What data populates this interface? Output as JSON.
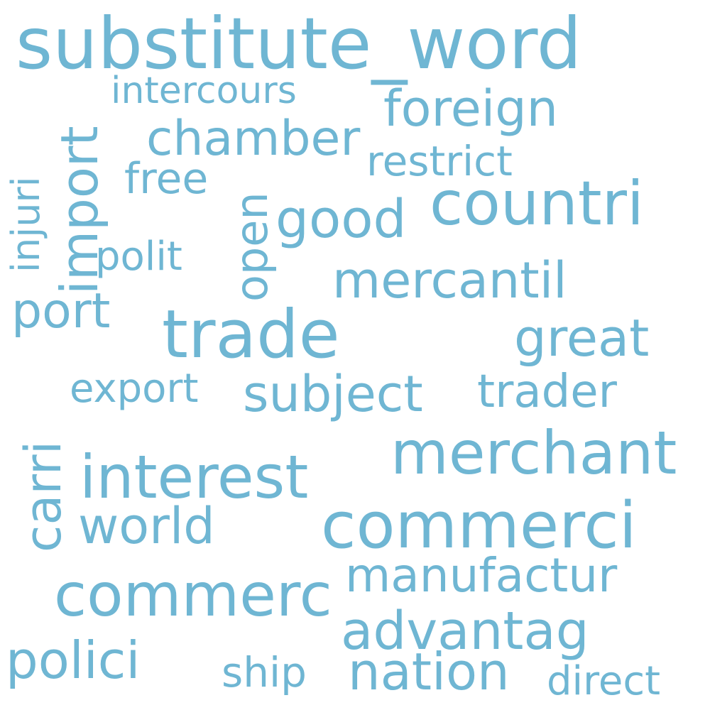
{
  "color": "#6fb6d3",
  "background": "#ffffff",
  "words": {
    "substitute_word": "substitute_word",
    "intercours": "intercours",
    "foreign": "foreign",
    "chamber": "chamber",
    "restrict": "restrict",
    "import": "import",
    "injuri": "injuri",
    "free": "free",
    "countri": "countri",
    "open": "open",
    "good": "good",
    "polit": "polit",
    "mercantil": "mercantil",
    "port": "port",
    "trade": "trade",
    "great": "great",
    "export": "export",
    "subject": "subject",
    "trader": "trader",
    "carri": "carri",
    "merchant": "merchant",
    "interest": "interest",
    "world": "world",
    "commerci": "commerci",
    "manufactur": "manufactur",
    "commerc": "commerc",
    "advantag": "advantag",
    "polici": "polici",
    "ship": "ship",
    "nation": "nation",
    "direct": "direct"
  }
}
